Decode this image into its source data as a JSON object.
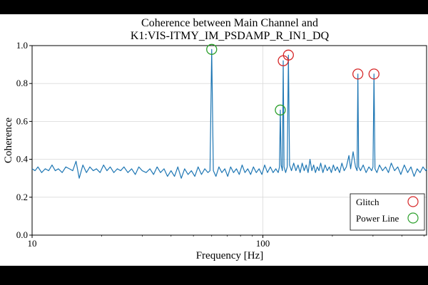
{
  "chart_data": {
    "type": "line",
    "title_lines": [
      "Coherence between Main Channel and",
      "K1:VIS-ITMY_IM_PSDAMP_R_IN1_DQ"
    ],
    "xlabel": "Frequency [Hz]",
    "ylabel": "Coherence",
    "x_scale": "log",
    "xlim": [
      10,
      512
    ],
    "ylim": [
      0.0,
      1.0
    ],
    "x_ticks": [
      {
        "value": 10,
        "label": "10"
      },
      {
        "value": 100,
        "label": "100"
      }
    ],
    "y_ticks": [
      {
        "value": 0.0,
        "label": "0.0"
      },
      {
        "value": 0.2,
        "label": "0.2"
      },
      {
        "value": 0.4,
        "label": "0.4"
      },
      {
        "value": 0.6,
        "label": "0.6"
      },
      {
        "value": 0.8,
        "label": "0.8"
      },
      {
        "value": 1.0,
        "label": "1.0"
      }
    ],
    "grid": true,
    "line_color": "#1f77b4",
    "baseline": [
      [
        10.0,
        0.35
      ],
      [
        10.3,
        0.34
      ],
      [
        10.6,
        0.36
      ],
      [
        11.0,
        0.33
      ],
      [
        11.4,
        0.35
      ],
      [
        11.8,
        0.34
      ],
      [
        12.2,
        0.37
      ],
      [
        12.6,
        0.34
      ],
      [
        13.0,
        0.35
      ],
      [
        13.5,
        0.33
      ],
      [
        14.0,
        0.36
      ],
      [
        14.5,
        0.35
      ],
      [
        15.0,
        0.34
      ],
      [
        15.5,
        0.39
      ],
      [
        16.0,
        0.3
      ],
      [
        16.6,
        0.37
      ],
      [
        17.2,
        0.33
      ],
      [
        17.8,
        0.36
      ],
      [
        18.4,
        0.34
      ],
      [
        19.0,
        0.35
      ],
      [
        19.7,
        0.33
      ],
      [
        20.4,
        0.37
      ],
      [
        21.1,
        0.34
      ],
      [
        21.8,
        0.36
      ],
      [
        22.6,
        0.33
      ],
      [
        23.4,
        0.35
      ],
      [
        24.2,
        0.34
      ],
      [
        25.0,
        0.36
      ],
      [
        26.0,
        0.33
      ],
      [
        27.0,
        0.35
      ],
      [
        28.0,
        0.32
      ],
      [
        29.0,
        0.36
      ],
      [
        30.0,
        0.34
      ],
      [
        31.2,
        0.33
      ],
      [
        32.4,
        0.35
      ],
      [
        33.6,
        0.32
      ],
      [
        34.8,
        0.36
      ],
      [
        36.0,
        0.33
      ],
      [
        37.3,
        0.35
      ],
      [
        38.6,
        0.31
      ],
      [
        40.0,
        0.34
      ],
      [
        41.4,
        0.31
      ],
      [
        42.8,
        0.36
      ],
      [
        44.3,
        0.3
      ],
      [
        45.8,
        0.35
      ],
      [
        47.4,
        0.32
      ],
      [
        49.0,
        0.34
      ],
      [
        50.7,
        0.31
      ],
      [
        52.4,
        0.36
      ],
      [
        54.2,
        0.32
      ],
      [
        56.0,
        0.35
      ],
      [
        57.8,
        0.33
      ],
      [
        59.0,
        0.34
      ],
      [
        60.0,
        0.98
      ],
      [
        61.0,
        0.34
      ],
      [
        62.6,
        0.31
      ],
      [
        64.5,
        0.36
      ],
      [
        66.4,
        0.33
      ],
      [
        68.4,
        0.35
      ],
      [
        70.4,
        0.31
      ],
      [
        72.5,
        0.36
      ],
      [
        74.6,
        0.33
      ],
      [
        76.8,
        0.35
      ],
      [
        79.0,
        0.32
      ],
      [
        81.3,
        0.37
      ],
      [
        83.6,
        0.33
      ],
      [
        86.0,
        0.35
      ],
      [
        88.5,
        0.32
      ],
      [
        91.0,
        0.36
      ],
      [
        93.6,
        0.33
      ],
      [
        96.3,
        0.35
      ],
      [
        99.0,
        0.32
      ],
      [
        101.8,
        0.37
      ],
      [
        104.7,
        0.33
      ],
      [
        107.7,
        0.36
      ],
      [
        110.7,
        0.33
      ],
      [
        113.8,
        0.35
      ],
      [
        116.5,
        0.33
      ],
      [
        118.0,
        0.36
      ],
      [
        119.0,
        0.66
      ],
      [
        120.0,
        0.37
      ],
      [
        121.5,
        0.34
      ],
      [
        122.5,
        0.92
      ],
      [
        123.5,
        0.36
      ],
      [
        125.5,
        0.33
      ],
      [
        127.5,
        0.36
      ],
      [
        129.0,
        0.95
      ],
      [
        130.5,
        0.37
      ],
      [
        133.0,
        0.34
      ],
      [
        136.0,
        0.38
      ],
      [
        139.0,
        0.34
      ],
      [
        142.0,
        0.37
      ],
      [
        145.0,
        0.33
      ],
      [
        148.0,
        0.38
      ],
      [
        151.0,
        0.34
      ],
      [
        154.0,
        0.37
      ],
      [
        157.0,
        0.33
      ],
      [
        160.0,
        0.4
      ],
      [
        163.0,
        0.34
      ],
      [
        166.0,
        0.37
      ],
      [
        169.0,
        0.33
      ],
      [
        172.0,
        0.36
      ],
      [
        175.0,
        0.34
      ],
      [
        178.0,
        0.38
      ],
      [
        182.0,
        0.33
      ],
      [
        186.0,
        0.37
      ],
      [
        190.0,
        0.34
      ],
      [
        194.0,
        0.36
      ],
      [
        198.0,
        0.33
      ],
      [
        202.0,
        0.37
      ],
      [
        206.0,
        0.34
      ],
      [
        210.0,
        0.36
      ],
      [
        215.0,
        0.33
      ],
      [
        220.0,
        0.38
      ],
      [
        225.0,
        0.34
      ],
      [
        230.0,
        0.36
      ],
      [
        236.0,
        0.42
      ],
      [
        240.0,
        0.35
      ],
      [
        246.0,
        0.44
      ],
      [
        252.0,
        0.36
      ],
      [
        256.0,
        0.34
      ],
      [
        258.0,
        0.85
      ],
      [
        260.0,
        0.36
      ],
      [
        265.0,
        0.34
      ],
      [
        272.0,
        0.37
      ],
      [
        280.0,
        0.33
      ],
      [
        288.0,
        0.36
      ],
      [
        296.0,
        0.34
      ],
      [
        300.0,
        0.36
      ],
      [
        303.0,
        0.85
      ],
      [
        306.0,
        0.35
      ],
      [
        312.0,
        0.33
      ],
      [
        320.0,
        0.37
      ],
      [
        330.0,
        0.34
      ],
      [
        340.0,
        0.36
      ],
      [
        350.0,
        0.33
      ],
      [
        360.0,
        0.38
      ],
      [
        372.0,
        0.34
      ],
      [
        384.0,
        0.36
      ],
      [
        396.0,
        0.32
      ],
      [
        410.0,
        0.37
      ],
      [
        424.0,
        0.33
      ],
      [
        438.0,
        0.36
      ],
      [
        452.0,
        0.31
      ],
      [
        466.0,
        0.35
      ],
      [
        480.0,
        0.33
      ],
      [
        494.0,
        0.36
      ],
      [
        508.0,
        0.34
      ],
      [
        512.0,
        0.35
      ]
    ],
    "markers": [
      {
        "type": "glitch",
        "x": 122.5,
        "y": 0.92
      },
      {
        "type": "glitch",
        "x": 129.0,
        "y": 0.95
      },
      {
        "type": "glitch",
        "x": 258.0,
        "y": 0.85
      },
      {
        "type": "glitch",
        "x": 303.0,
        "y": 0.85
      },
      {
        "type": "power-line",
        "x": 60.0,
        "y": 0.98
      },
      {
        "type": "power-line",
        "x": 119.0,
        "y": 0.66
      }
    ],
    "legend": {
      "position": "lower-right",
      "entries": [
        {
          "type": "glitch",
          "label": "Glitch",
          "color": "#d62728"
        },
        {
          "type": "power-line",
          "label": "Power Line",
          "color": "#2ca02c"
        }
      ]
    }
  }
}
